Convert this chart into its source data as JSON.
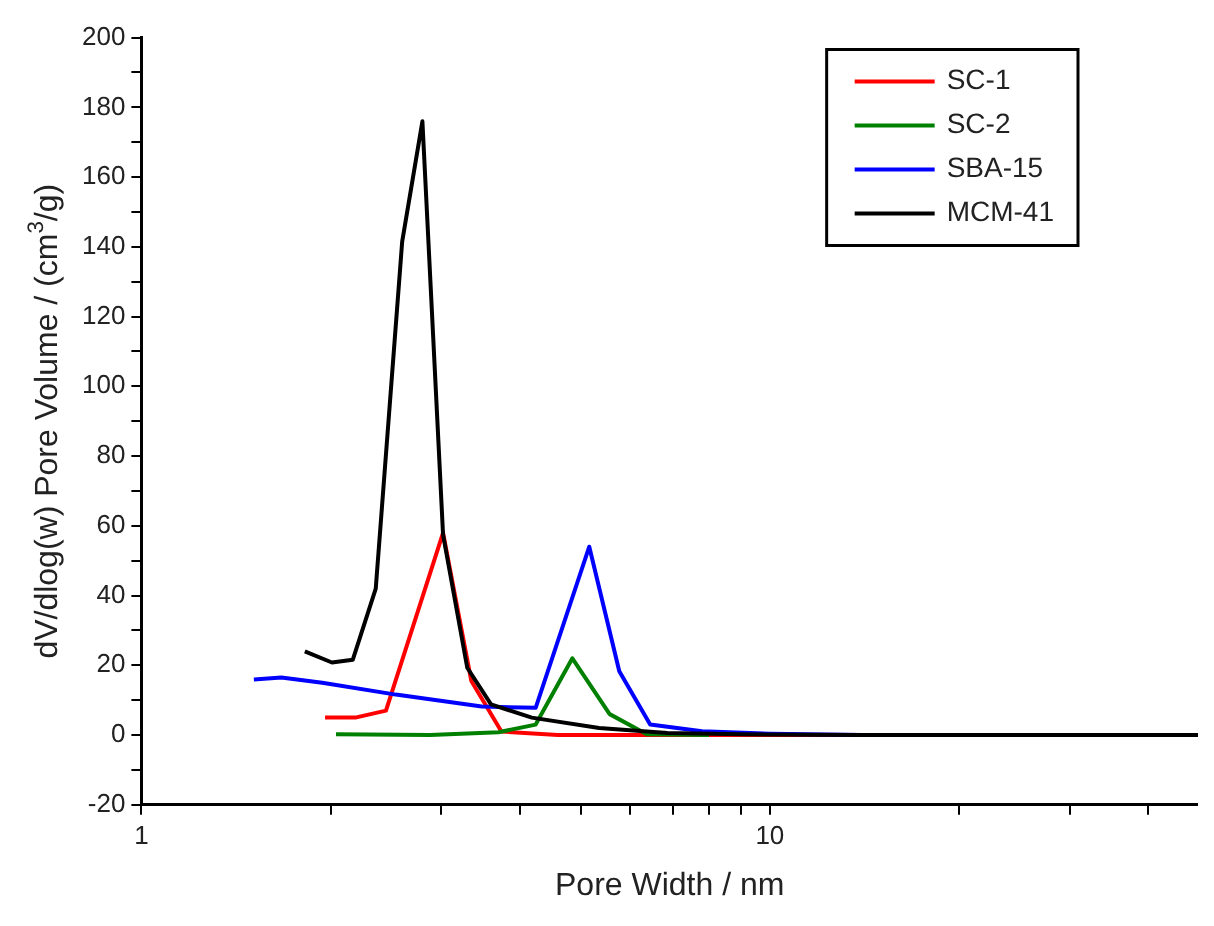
{
  "chart_data": {
    "type": "line",
    "xlabel": "Pore Width / nm",
    "ylabel": "dV/dlog(w) Pore Volume / (cm$^{3}$/g)",
    "log": "x",
    "xlim": [
      1,
      48
    ],
    "ylim": [
      -20,
      200
    ],
    "xticks": [
      1,
      {
        "value": 2,
        "label": null
      },
      {
        "value": 3,
        "label": null
      },
      {
        "value": 4,
        "label": null
      },
      {
        "value": 5,
        "label": null
      },
      {
        "value": 6,
        "label": null
      },
      {
        "value": 7,
        "label": null
      },
      {
        "value": 8,
        "label": null
      },
      {
        "value": 9,
        "label": null
      },
      10,
      {
        "value": 20,
        "label": null
      },
      {
        "value": 30,
        "label": null
      },
      {
        "value": 40,
        "label": null
      }
    ],
    "yticks": [
      -20,
      {
        "value": -10,
        "label": null
      },
      0,
      {
        "value": 10,
        "label": null
      },
      20,
      {
        "value": 30,
        "label": null
      },
      40,
      {
        "value": 50,
        "label": null
      },
      60,
      {
        "value": 70,
        "label": null
      },
      80,
      {
        "value": 90,
        "label": null
      },
      100,
      {
        "value": 110,
        "label": null
      },
      120,
      {
        "value": 130,
        "label": null
      },
      140,
      {
        "value": 150,
        "label": null
      },
      160,
      {
        "value": 170,
        "label": null
      },
      180,
      {
        "value": 190,
        "label": null
      },
      200
    ],
    "grid": false,
    "legend": "top right",
    "marker": "none",
    "line_style": "solid",
    "series": [
      {
        "name": "SC-1",
        "color": "#ff0000",
        "x": [
          1.96,
          2.19,
          2.45,
          3.02,
          3.35,
          3.74,
          4.6,
          6,
          8,
          12,
          20
        ],
        "values": [
          5,
          5,
          7,
          58,
          15.5,
          1,
          0,
          0,
          0,
          0,
          0
        ]
      },
      {
        "name": "SC-2",
        "color": "#008000",
        "x": [
          2.04,
          2.88,
          3.7,
          4.24,
          4.85,
          5.56,
          6.37,
          8
        ],
        "values": [
          0.2,
          0,
          0.8,
          3,
          22,
          6,
          0.2,
          0
        ]
      },
      {
        "name": "SBA-15",
        "color": "#0000ff",
        "x": [
          1.51,
          1.67,
          1.94,
          2.54,
          3.48,
          4.24,
          5.16,
          5.76,
          6.45,
          7.8,
          10,
          14,
          20
        ],
        "values": [
          15.9,
          16.5,
          15,
          11.6,
          8.2,
          7.8,
          54,
          18.3,
          3,
          1.1,
          0.4,
          0,
          0
        ]
      },
      {
        "name": "MCM-41",
        "color": "#000000",
        "x": [
          1.82,
          2.01,
          2.17,
          2.36,
          2.6,
          2.8,
          3.02,
          3.3,
          3.6,
          4.18,
          5.35,
          6.87,
          9,
          14,
          25,
          48
        ],
        "values": [
          24,
          20.8,
          21.6,
          42,
          141.5,
          176,
          57.5,
          19.3,
          8.8,
          5,
          2,
          0.6,
          0.2,
          0,
          0,
          0
        ]
      }
    ]
  }
}
